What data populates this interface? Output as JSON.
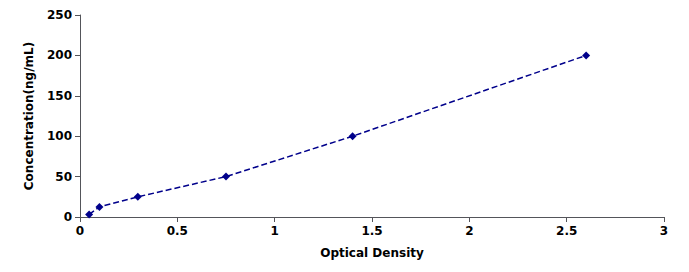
{
  "chart_data": {
    "type": "line",
    "x": [
      0.047,
      0.1,
      0.297,
      0.75,
      1.4,
      2.6
    ],
    "values": [
      3.125,
      12.5,
      25,
      50,
      100,
      200
    ],
    "xlabel": "Optical Density",
    "ylabel": "Concentration(ng/mL)",
    "xlim": [
      0,
      3
    ],
    "xticks": [
      0,
      0.5,
      1,
      1.5,
      2,
      2.5,
      3
    ],
    "ylim": [
      0,
      250
    ],
    "yticks": [
      0,
      50,
      100,
      150,
      200,
      250
    ],
    "color": "#00008B",
    "marker": "diamond",
    "line_style": "dashed",
    "grid": false
  }
}
